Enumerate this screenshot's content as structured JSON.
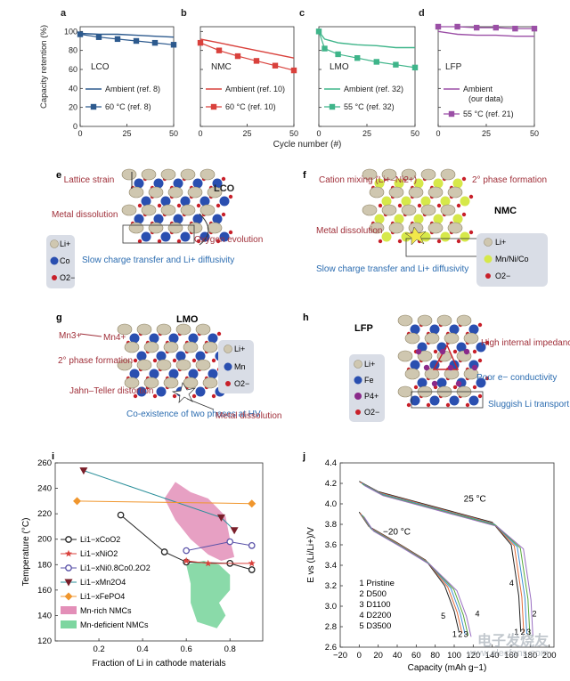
{
  "top_panels": {
    "ylabel": "Capacity retention (%)",
    "xlabel": "Cycle number (#)",
    "panels": [
      {
        "letter": "a",
        "label": "LCO",
        "legend": [
          "Ambient (ref. 8)",
          "60 °C (ref. 8)"
        ],
        "color": "#2d5a8e"
      },
      {
        "letter": "b",
        "label": "NMC",
        "legend": [
          "Ambient (ref. 10)",
          "60 °C (ref. 10)"
        ],
        "color": "#d9413c"
      },
      {
        "letter": "c",
        "label": "LMO",
        "legend": [
          "Ambient (ref. 32)",
          "55 °C (ref. 32)"
        ],
        "color": "#3fb58a"
      },
      {
        "letter": "d",
        "label": "LFP",
        "legend": [
          "Ambient (our data)",
          "55 °C (ref. 21)"
        ],
        "color": "#9b4fa6"
      }
    ],
    "yticks": [
      "0",
      "20",
      "40",
      "60",
      "80",
      "100"
    ],
    "xticks": [
      "0",
      "25",
      "50"
    ]
  },
  "chart_data": [
    {
      "type": "line",
      "panel": "a",
      "x": [
        0,
        10,
        20,
        30,
        40,
        50
      ],
      "series": [
        {
          "name": "Ambient (ref. 8)",
          "values": [
            98,
            97,
            97,
            96,
            95,
            94
          ]
        },
        {
          "name": "60 °C (ref. 8)",
          "values": [
            97,
            94,
            92,
            90,
            88,
            86
          ]
        }
      ],
      "ylim": [
        0,
        105
      ],
      "xlim": [
        0,
        50
      ]
    },
    {
      "type": "line",
      "panel": "b",
      "x": [
        0,
        10,
        20,
        30,
        40,
        50
      ],
      "series": [
        {
          "name": "Ambient (ref. 10)",
          "values": [
            92,
            88,
            84,
            80,
            76,
            72
          ]
        },
        {
          "name": "60 °C (ref. 10)",
          "values": [
            88,
            80,
            74,
            69,
            64,
            59
          ]
        }
      ],
      "ylim": [
        0,
        105
      ],
      "xlim": [
        0,
        50
      ]
    },
    {
      "type": "line",
      "panel": "c",
      "x": [
        0,
        3,
        10,
        20,
        30,
        40,
        50
      ],
      "series": [
        {
          "name": "Ambient (ref. 32)",
          "values": [
            100,
            92,
            88,
            86,
            85,
            83,
            83
          ]
        },
        {
          "name": "55 °C (ref. 32)",
          "values": [
            100,
            82,
            76,
            72,
            68,
            65,
            62
          ]
        }
      ],
      "ylim": [
        0,
        105
      ],
      "xlim": [
        0,
        50
      ]
    },
    {
      "type": "line",
      "panel": "d",
      "x": [
        0,
        10,
        20,
        30,
        40,
        50
      ],
      "series": [
        {
          "name": "Ambient (our data)",
          "values": [
            100,
            97,
            96,
            96,
            95,
            95
          ]
        },
        {
          "name": "55 °C (ref. 21)",
          "values": [
            105,
            105,
            104,
            104,
            103,
            103
          ]
        }
      ],
      "ylim": [
        0,
        105
      ],
      "xlim": [
        0,
        50
      ]
    },
    {
      "type": "line",
      "panel": "i",
      "xlabel": "Fraction of Li in cathode materials",
      "ylabel": "Temperature (°C)",
      "xticks": [
        "0.2",
        "0.4",
        "0.6",
        "0.8"
      ],
      "yticks": [
        "120",
        "140",
        "160",
        "180",
        "200",
        "220",
        "240",
        "260"
      ],
      "xlim": [
        0,
        0.95
      ],
      "ylim": [
        120,
        260
      ],
      "series": [
        {
          "name": "Li1−xCoO2",
          "x": [
            0.3,
            0.5,
            0.6,
            0.8,
            0.9
          ],
          "values": [
            219,
            190,
            182,
            181,
            176
          ]
        },
        {
          "name": "Li1−xNiO2",
          "x": [
            0.6,
            0.7,
            0.9
          ],
          "values": [
            183,
            181,
            181
          ]
        },
        {
          "name": "Li1−xNi0.8Co0.2O2",
          "x": [
            0.6,
            0.8,
            0.9
          ],
          "values": [
            191,
            198,
            195
          ]
        },
        {
          "name": "Li1−xMn2O4",
          "x": [
            0.13,
            0.76,
            0.82
          ],
          "values": [
            254,
            217,
            207
          ]
        },
        {
          "name": "Li1−xFePO4",
          "x": [
            0.1,
            0.9
          ],
          "values": [
            230,
            228
          ]
        }
      ]
    },
    {
      "type": "line",
      "panel": "j",
      "xlabel": "Capacity (mAh g−1)",
      "ylabel": "E vs (Li/Li+)/V",
      "xticks": [
        "−20",
        "0",
        "20",
        "40",
        "60",
        "80",
        "100",
        "120",
        "140",
        "160",
        "180",
        "200"
      ],
      "yticks": [
        "2.6",
        "2.8",
        "3.0",
        "3.2",
        "3.4",
        "3.6",
        "3.8",
        "4.0",
        "4.2",
        "4.4"
      ],
      "xlim": [
        -20,
        205
      ],
      "ylim": [
        2.6,
        4.4
      ],
      "series": [
        {
          "name": "1 Pristine",
          "temp": "25 °C",
          "x": [
            0,
            20,
            60,
            100,
            140,
            160,
            168,
            170
          ],
          "values": [
            4.22,
            4.12,
            4.02,
            3.92,
            3.82,
            3.6,
            3.1,
            2.75
          ]
        },
        {
          "name": "1 Pristine",
          "temp": "−20 °C",
          "x": [
            0,
            10,
            40,
            70,
            90,
            100,
            105
          ],
          "values": [
            3.92,
            3.78,
            3.62,
            3.45,
            3.2,
            2.95,
            2.75
          ]
        }
      ]
    }
  ],
  "panel_i": {
    "letter": "i",
    "legend": [
      "Li1−xCoO2",
      "Li1−xNiO2",
      "Li1−xNi0.8Co0.2O2",
      "Li1−xMn2O4",
      "Li1−xFePO4",
      "Mn-rich NMCs",
      "Mn-deficient NMCs"
    ],
    "colors": {
      "co": "#222222",
      "ni": "#d9413c",
      "nca": "#5a52a8",
      "mn": "#7a1f2a",
      "fe": "#f0962d",
      "rich": "#e38fb8",
      "def": "#7dd6a0"
    }
  },
  "panel_j": {
    "letter": "j",
    "temp_hot": "25 °C",
    "temp_cold": "−20 °C",
    "legend": [
      "1 Pristine",
      "2 D500",
      "3 D1100",
      "4 D2200",
      "5 D3500"
    ],
    "curve_colors": [
      "#222222",
      "#e06c3a",
      "#3f8fd4",
      "#59a83b",
      "#9a6fc2"
    ],
    "end_labels_hot": [
      "1",
      "2",
      "3",
      "4"
    ],
    "end_labels_cold": [
      "5",
      "1",
      "2",
      "3",
      "4"
    ],
    "watermark": "电子发烧友",
    "watermark2": "www.elecfans.com"
  },
  "schematics": {
    "e": {
      "letter": "e",
      "title": "LCO",
      "annotations": [
        "Lattice strain",
        "Metal dissolution",
        "Oxygen evolution",
        "Slow charge transfer and Li+ diffusivity"
      ],
      "legend": [
        "Li+",
        "Co",
        "O2−"
      ]
    },
    "f": {
      "letter": "f",
      "title": "NMC",
      "annotations": [
        "Cation mixing (Li+–Ni2+)",
        "2° phase formation",
        "Metal dissolution",
        "Slow charge transfer and Li+ diffusivity"
      ],
      "legend": [
        "Li+",
        "Mn/Ni/Co",
        "O2−"
      ]
    },
    "g": {
      "letter": "g",
      "title": "LMO",
      "annotations": [
        "Mn3+",
        "Mn4+",
        "2° phase formation",
        "Jahn–Teller distortion",
        "Co-existence of two phases at HV",
        "Metal dissolution"
      ],
      "legend": [
        "Li+",
        "Mn",
        "O2−"
      ]
    },
    "h": {
      "letter": "h",
      "title": "LFP",
      "annotations": [
        "High internal impedance",
        "Poor e− conductivity",
        "Sluggish Li transport"
      ],
      "legend": [
        "Li+",
        "Fe",
        "P4+",
        "O2−"
      ]
    }
  },
  "colors": {
    "annot_red": "#a0303a",
    "annot_blue": "#2b6cb0",
    "legend_bg": "#d9dde6",
    "li": "#cfc7b0",
    "co": "#2a4fb0",
    "o": "#c8202a"
  }
}
